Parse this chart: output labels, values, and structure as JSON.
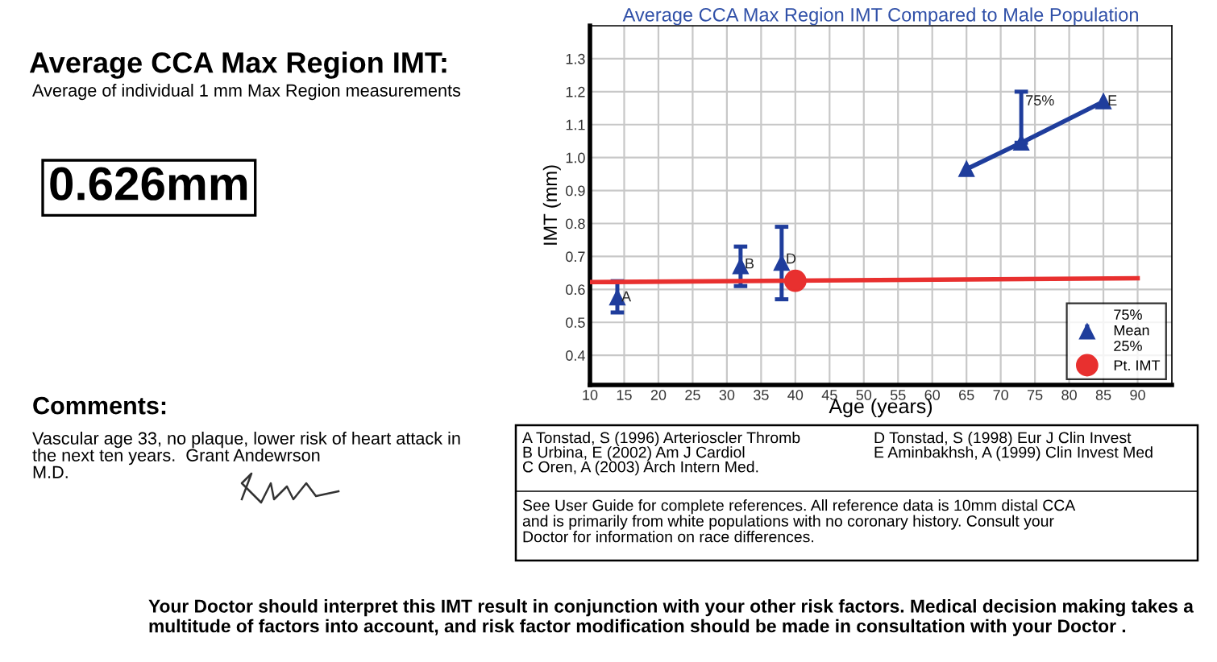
{
  "chart_data": {
    "type": "scatter",
    "title": "Average CCA Max Region IMT Compared to Male Population",
    "xlabel": "Age (years)",
    "ylabel": "IMT (mm)",
    "xlim": [
      10,
      95
    ],
    "xticks": [
      10,
      15,
      20,
      25,
      30,
      35,
      40,
      45,
      50,
      55,
      60,
      65,
      70,
      75,
      80,
      85,
      90
    ],
    "ylim": [
      0.31,
      1.4
    ],
    "yticks": [
      0.4,
      0.5,
      0.6,
      0.7,
      0.8,
      0.9,
      {
        "value": 1.0,
        "label": "1.0"
      },
      1.1,
      1.2,
      1.3
    ],
    "grid": true,
    "legend": "bottom right",
    "marker": "triangle",
    "series": [
      {
        "name": "75%\nMean\n25%",
        "color": "#1f3d9c",
        "x": [
          14,
          32,
          38
        ],
        "values": [
          0.575,
          0.67,
          0.68
        ],
        "errors": [
          [
            0.53,
            0.625
          ],
          [
            0.61,
            0.73
          ],
          [
            0.57,
            0.79
          ]
        ]
      },
      {
        "type": "line",
        "color": "#1f3d9c",
        "x": [
          65,
          73,
          85
        ],
        "values": [
          0.965,
          1.045,
          1.17
        ],
        "errors": [
          null,
          [
            1.045,
            1.2
          ],
          null
        ]
      },
      {
        "type": "line",
        "color": "#e8302f",
        "marker": "none",
        "x": [
          10,
          90
        ],
        "values": [
          0.622,
          0.634
        ]
      },
      {
        "name": "Pt. IMT",
        "color": "#e8302f",
        "marker": "circle",
        "x": [
          40
        ],
        "values": [
          0.626
        ]
      }
    ],
    "annotations": [
      {
        "text": "A",
        "x": 14.6,
        "y": 0.575
      },
      {
        "text": "B",
        "x": 32.6,
        "y": 0.675
      },
      {
        "text": "D",
        "x": 38.6,
        "y": 0.69
      },
      {
        "text": "E",
        "x": 85.6,
        "y": 1.17
      },
      {
        "text": "75%",
        "x": 73.6,
        "y": 1.17
      },
      "Average CCA Max Region IMT:",
      "Average of individual 1 mm Max Region measurements",
      "0.626mm",
      "Comments:",
      "Vascular age 33, no plaque, lower risk of heart attack in\nthe next ten years.  Grant Andewrson\nM.D.",
      "A Tonstad, S (1996) Arterioscler Thromb\nB Urbina, E (2002) Am J Cardiol\nC Oren, A (2003) Arch Intern Med.",
      "D Tonstad, S (1998) Eur J Clin Invest\nE Aminbakhsh, A (1999) Clin Invest Med",
      "See User Guide for complete references. All reference data is 10mm distal CCA\nand is primarily from white populations with no coronary history. Consult your\nDoctor for information on race differences.",
      "Your Doctor should interpret this IMT result in conjunction with your other risk factors. Medical decision making takes a\nmultitude of factors into account, and risk factor modification should be made in consultation with your Doctor ."
    ]
  }
}
